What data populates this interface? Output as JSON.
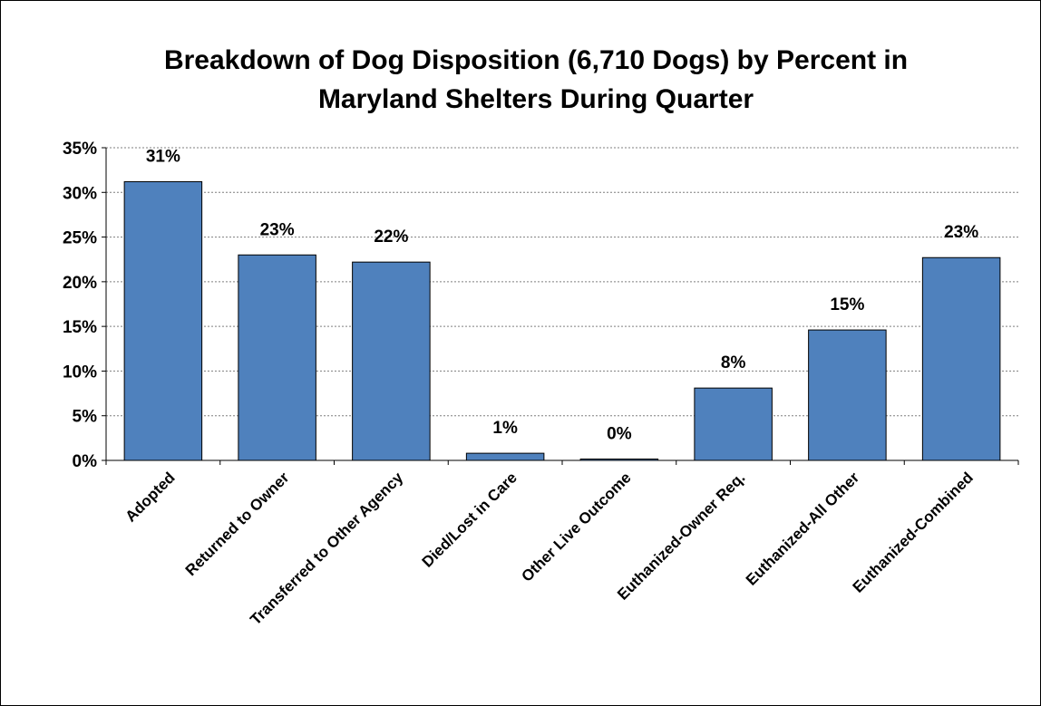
{
  "chart_data": {
    "type": "bar",
    "title_lines": [
      "Breakdown of Dog Disposition (6,710 Dogs) by Percent in",
      "Maryland Shelters During Quarter"
    ],
    "categories": [
      "Adopted",
      "Returned to Owner",
      "Transferred to Other Agency",
      "Died/Lost in Care",
      "Other Live Outcome",
      "Euthanized-Owner Req.",
      "Euthanized-All Other",
      "Euthanized-Combined"
    ],
    "values": [
      31.2,
      23.0,
      22.2,
      0.8,
      0.1,
      8.1,
      14.6,
      22.7
    ],
    "data_labels": [
      "31%",
      "23%",
      "22%",
      "1%",
      "0%",
      "8%",
      "15%",
      "23%"
    ],
    "ylim": [
      0,
      35
    ],
    "yticks": [
      0,
      5,
      10,
      15,
      20,
      25,
      30,
      35
    ],
    "ytick_labels": [
      "0%",
      "5%",
      "10%",
      "15%",
      "20%",
      "25%",
      "30%",
      "35%"
    ],
    "grid": "horizontal dotted",
    "legend": "none",
    "bar_color": "#4f81bd",
    "bar_edge_color": "#000000"
  }
}
